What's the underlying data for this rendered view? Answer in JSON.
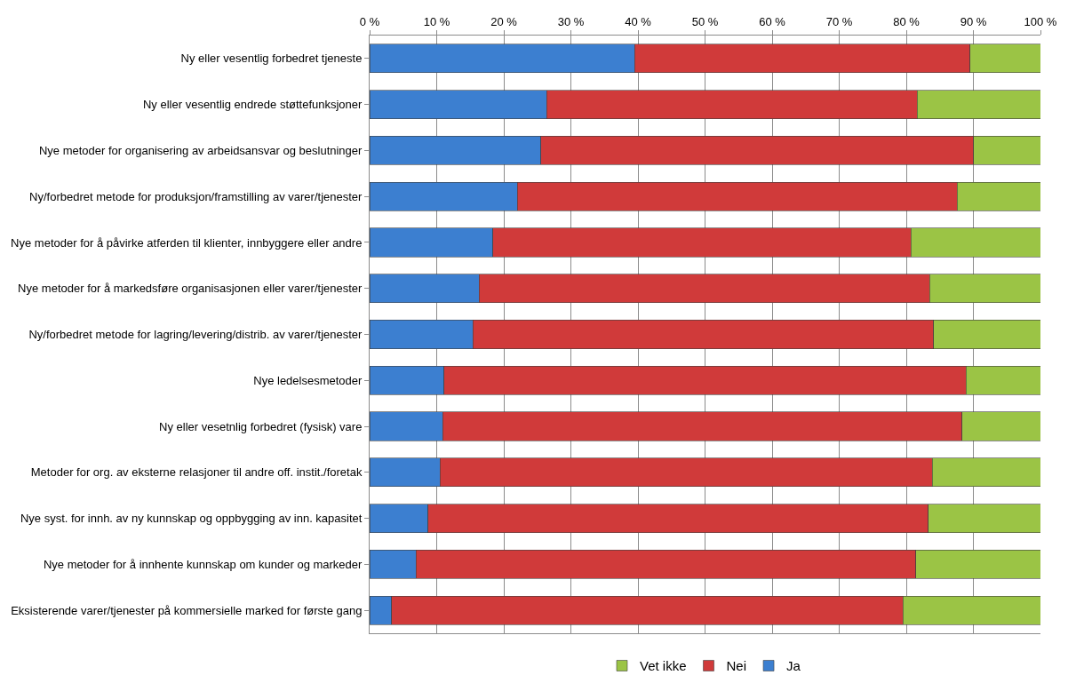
{
  "chart_data": {
    "type": "bar",
    "orientation": "horizontal",
    "stacked": true,
    "categories": [
      "Ny eller vesentlig forbedret tjeneste",
      "Ny eller vesentlig endrede støttefunksjoner",
      "Nye metoder for organisering av arbeidsansvar og beslutninger",
      "Ny/forbedret metode for produksjon/framstilling av varer/tjenester",
      "Nye metoder for å påvirke atferden til klienter, innbyggere eller andre",
      "Nye metoder for å markedsføre organisasjonen eller varer/tjenester",
      "Ny/forbedret metode for lagring/levering/distrib. av varer/tjenester",
      "Nye ledelsesmetoder",
      "Ny eller vesetnlig forbedret (fysisk) vare",
      "Metoder for org. av eksterne relasjoner til andre off. instit./foretak",
      "Nye syst. for innh. av ny kunnskap og oppbygging av inn. kapasitet",
      "Nye metoder for å innhente kunnskap om kunder og markeder",
      "Eksisterende varer/tjenester på kommersielle marked for første gang"
    ],
    "series": [
      {
        "name": "Ja",
        "color": "#3c7fd0",
        "values": [
          39.5,
          26.4,
          25.5,
          22.0,
          18.4,
          16.3,
          15.4,
          11.1,
          10.9,
          10.5,
          8.7,
          6.9,
          3.3
        ]
      },
      {
        "name": "Nei",
        "color": "#d03a3a",
        "values": [
          50.0,
          55.2,
          64.5,
          65.6,
          62.3,
          67.2,
          68.7,
          77.8,
          77.4,
          73.4,
          74.6,
          74.5,
          76.2
        ]
      },
      {
        "name": "Vet ikke",
        "color": "#9bc445",
        "values": [
          10.5,
          18.4,
          10.0,
          12.4,
          19.3,
          16.5,
          15.9,
          11.1,
          11.7,
          16.1,
          16.7,
          18.6,
          20.5
        ]
      }
    ],
    "xlim": [
      0,
      100
    ],
    "xticks": [
      {
        "value": 0,
        "label": "0 %"
      },
      {
        "value": 10,
        "label": "10 %"
      },
      {
        "value": 20,
        "label": "20 %"
      },
      {
        "value": 30,
        "label": "30 %"
      },
      {
        "value": 40,
        "label": "40 %"
      },
      {
        "value": 50,
        "label": "50 %"
      },
      {
        "value": 60,
        "label": "60 %"
      },
      {
        "value": 70,
        "label": "70 %"
      },
      {
        "value": 80,
        "label": "80 %"
      },
      {
        "value": 90,
        "label": "90 %"
      },
      {
        "value": 100,
        "label": "100 %"
      }
    ],
    "grid": "x",
    "legend": "bottom"
  }
}
